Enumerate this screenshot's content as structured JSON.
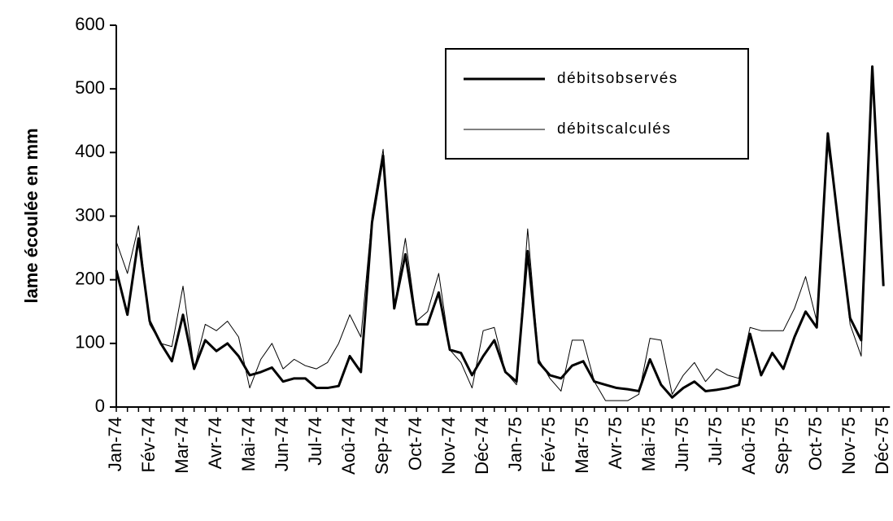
{
  "chart_data": {
    "type": "line",
    "y_label": "lame écoulée en mm",
    "categories": [
      "Jan-74",
      null,
      null,
      "Fév-74",
      null,
      null,
      "Mar-74",
      null,
      null,
      "Avr-74",
      null,
      null,
      "Mai-74",
      null,
      null,
      "Jun-74",
      null,
      null,
      "Jul-74",
      null,
      null,
      "Aoû-74",
      null,
      null,
      "Sep-74",
      null,
      null,
      "Oct-74",
      null,
      null,
      "Nov-74",
      null,
      null,
      "Déc-74",
      null,
      null,
      "Jan-75",
      null,
      null,
      "Fév-75",
      null,
      null,
      "Mar-75",
      null,
      null,
      "Avr-75",
      null,
      null,
      "Mai-75",
      null,
      null,
      "Jun-75",
      null,
      null,
      "Jul-75",
      null,
      null,
      "Aoû-75",
      null,
      null,
      "Sep-75",
      null,
      null,
      "Oct-75",
      null,
      null,
      "Nov-75",
      null,
      null,
      "Déc-75"
    ],
    "series": [
      {
        "name": "débitsobservés",
        "color": "#000000",
        "line_width": 3,
        "values": [
          215,
          145,
          265,
          135,
          100,
          72,
          145,
          60,
          105,
          88,
          100,
          80,
          50,
          55,
          62,
          40,
          45,
          45,
          30,
          30,
          33,
          80,
          55,
          290,
          395,
          155,
          240,
          130,
          130,
          180,
          90,
          85,
          50,
          80,
          105,
          55,
          40,
          245,
          70,
          50,
          45,
          65,
          72,
          40,
          35,
          30,
          28,
          25,
          75,
          35,
          15,
          30,
          40,
          25,
          27,
          30,
          35,
          115,
          50,
          85,
          60,
          110,
          150,
          125,
          430,
          280,
          140,
          105,
          535,
          190
        ]
      },
      {
        "name": "débitscalculés",
        "color": "#000000",
        "line_width": 1,
        "values": [
          260,
          210,
          285,
          130,
          100,
          95,
          190,
          60,
          130,
          120,
          135,
          110,
          30,
          75,
          100,
          60,
          75,
          65,
          60,
          70,
          100,
          145,
          110,
          300,
          405,
          155,
          265,
          135,
          150,
          210,
          90,
          70,
          30,
          120,
          125,
          55,
          35,
          280,
          75,
          45,
          25,
          105,
          105,
          40,
          10,
          10,
          10,
          20,
          108,
          105,
          20,
          50,
          70,
          40,
          60,
          50,
          45,
          125,
          120,
          120,
          120,
          155,
          205,
          135,
          410,
          290,
          130,
          80,
          520,
          190
        ]
      }
    ],
    "ylim": [
      0,
      600
    ],
    "yticks": [
      0,
      100,
      200,
      300,
      400,
      500,
      600
    ]
  }
}
